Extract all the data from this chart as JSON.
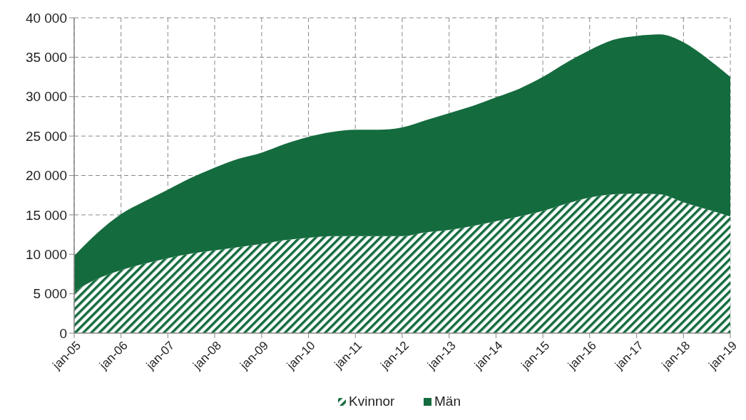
{
  "chart_data": {
    "type": "area",
    "stacked": true,
    "x": [
      "2005-01",
      "2005-07",
      "2006-01",
      "2006-07",
      "2007-01",
      "2007-07",
      "2008-01",
      "2008-07",
      "2009-01",
      "2009-07",
      "2010-01",
      "2010-07",
      "2011-01",
      "2011-07",
      "2012-01",
      "2012-07",
      "2013-01",
      "2013-07",
      "2014-01",
      "2014-07",
      "2015-01",
      "2015-07",
      "2016-01",
      "2016-07",
      "2017-01",
      "2017-07",
      "2018-01",
      "2018-07",
      "2019-01"
    ],
    "series": [
      {
        "name": "Kvinnor",
        "color": "#146b3e",
        "values": [
          5300,
          6900,
          8000,
          8800,
          9500,
          10100,
          10500,
          10900,
          11300,
          11800,
          12100,
          12300,
          12300,
          12300,
          12300,
          12800,
          13100,
          13600,
          14200,
          14800,
          15500,
          16400,
          17200,
          17600,
          17700,
          17600,
          16600,
          15700,
          14800
        ]
      },
      {
        "name": "Män",
        "color": "#146b3e",
        "values": [
          4500,
          5800,
          7100,
          7900,
          8700,
          9600,
          10500,
          11200,
          11600,
          12200,
          12800,
          13200,
          13500,
          13500,
          13800,
          14200,
          14800,
          15200,
          15700,
          16200,
          17000,
          17900,
          18700,
          19600,
          20000,
          20300,
          20300,
          19200,
          17700
        ]
      }
    ],
    "xlim": [
      "2005-01",
      "2019-01"
    ],
    "xticks": [
      {
        "value": "2005-01",
        "label": "jan-05"
      },
      {
        "value": "2006-01",
        "label": "jan-06"
      },
      {
        "value": "2007-01",
        "label": "jan-07"
      },
      {
        "value": "2008-01",
        "label": "jan-08"
      },
      {
        "value": "2009-01",
        "label": "jan-09"
      },
      {
        "value": "2010-01",
        "label": "jan-10"
      },
      {
        "value": "2011-01",
        "label": "jan-11"
      },
      {
        "value": "2012-01",
        "label": "jan-12"
      },
      {
        "value": "2013-01",
        "label": "jan-13"
      },
      {
        "value": "2014-01",
        "label": "jan-14"
      },
      {
        "value": "2015-01",
        "label": "jan-15"
      },
      {
        "value": "2016-01",
        "label": "jan-16"
      },
      {
        "value": "2017-01",
        "label": "jan-17"
      },
      {
        "value": "2018-01",
        "label": "jan-18"
      },
      {
        "value": "2019-01",
        "label": "jan-19"
      }
    ],
    "ylim": [
      0,
      40000
    ],
    "yticks": [
      0,
      {
        "value": 5000,
        "label": "5 000"
      },
      {
        "value": 10000,
        "label": "10 000"
      },
      {
        "value": 15000,
        "label": "15 000"
      },
      {
        "value": 20000,
        "label": "20 000"
      },
      {
        "value": 25000,
        "label": "25 000"
      },
      {
        "value": 30000,
        "label": "30 000"
      },
      {
        "value": 35000,
        "label": "35 000"
      },
      {
        "value": 40000,
        "label": "40 000"
      }
    ],
    "grid": true,
    "legend": "bottom"
  }
}
